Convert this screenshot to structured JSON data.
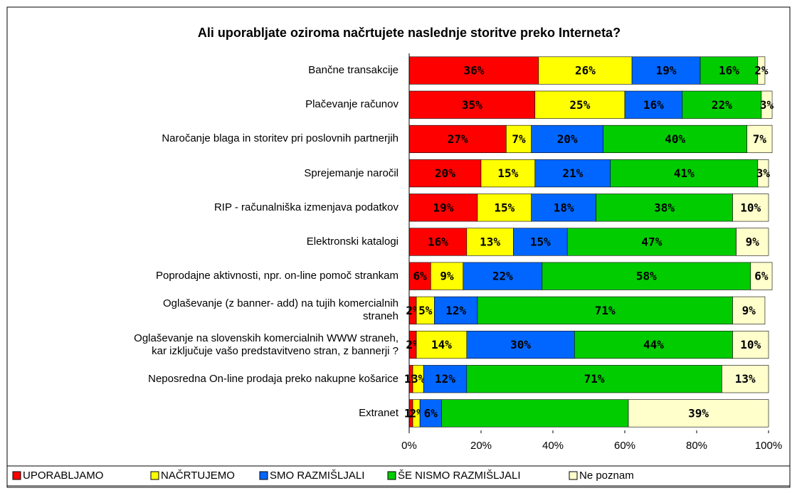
{
  "chart_data": {
    "type": "stacked-barh",
    "title": "Ali uporabljate oziroma načrtujete naslednje storitve preko Interneta?",
    "categories": [
      "Bančne transakcije",
      "Plačevanje računov",
      "Naročanje blaga in storitev pri poslovnih partnerjih",
      "Sprejemanje naročil",
      "RIP - računalniška izmenjava podatkov",
      "Elektronski katalogi",
      "Poprodajne aktivnosti, npr. on-line pomoč strankam",
      "Oglaševanje (z banner- add) na tujih komercialnih\nstraneh",
      "Oglaševanje na slovenskih komercialnih WWW straneh,\nkar izključuje vašo predstavitveno stran, z  bannerji ?",
      "Neposredna On-line prodaja preko nakupne košarice",
      "Extranet"
    ],
    "series": [
      {
        "name": "UPORABLJAMO",
        "color": "#ff0000",
        "values": [
          36,
          35,
          27,
          20,
          19,
          16,
          6,
          2,
          2,
          1,
          1
        ],
        "value_labels": [
          "36%",
          "35%",
          "27%",
          "20%",
          "19%",
          "16%",
          "6%",
          "2%",
          "2%",
          "1%",
          "1%"
        ]
      },
      {
        "name": "NAČRTUJEMO",
        "color": "#ffff00",
        "values": [
          26,
          25,
          7,
          15,
          15,
          13,
          9,
          5,
          14,
          3,
          2
        ],
        "value_labels": [
          "26%",
          "25%",
          "7%",
          "15%",
          "15%",
          "13%",
          "9%",
          "5%",
          "14%",
          "3%",
          "2%"
        ]
      },
      {
        "name": "SMO RAZMIŠLJALI",
        "color": "#0066ff",
        "values": [
          19,
          16,
          20,
          21,
          18,
          15,
          22,
          12,
          30,
          12,
          6
        ],
        "value_labels": [
          "19%",
          "16%",
          "20%",
          "21%",
          "18%",
          "15%",
          "22%",
          "12%",
          "30%",
          "12%",
          "6%"
        ]
      },
      {
        "name": "ŠE NISMO RAZMIŠLJALI",
        "color": "#00cc00",
        "values": [
          16,
          22,
          40,
          41,
          38,
          47,
          58,
          71,
          44,
          71,
          52
        ],
        "value_labels": [
          "16%",
          "22%",
          "40%",
          "41%",
          "38%",
          "47%",
          "58%",
          "71%",
          "44%",
          "71%",
          null
        ]
      },
      {
        "name": "Ne poznam",
        "color": "#ffffcc",
        "values": [
          2,
          3,
          7,
          3,
          10,
          9,
          6,
          9,
          10,
          13,
          39
        ],
        "value_labels": [
          "2%",
          "3%",
          "7%",
          "3%",
          "10%",
          "9%",
          "6%",
          "9%",
          "10%",
          "13%",
          "39%"
        ]
      }
    ],
    "xlim": [
      0,
      100
    ],
    "xticks": [
      {
        "value": 0,
        "label": "0%"
      },
      {
        "value": 20,
        "label": "20%"
      },
      {
        "value": 40,
        "label": "40%"
      },
      {
        "value": 60,
        "label": "60%"
      },
      {
        "value": 80,
        "label": "80%"
      },
      {
        "value": 100,
        "label": "100%"
      }
    ],
    "legend": "bottom"
  }
}
